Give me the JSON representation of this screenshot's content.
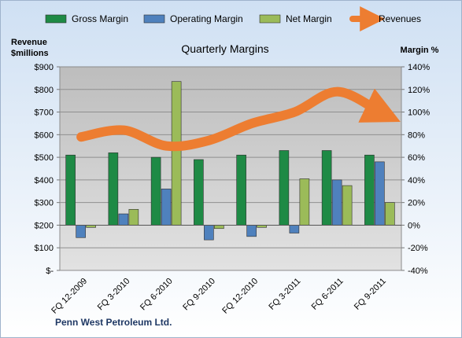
{
  "chart_data": {
    "type": "bar",
    "title": "Quarterly Margins",
    "company": "Penn West Petroleum Ltd.",
    "categories": [
      "FQ 12-2009",
      "FQ 3-2010",
      "FQ 6-2010",
      "FQ 9-2010",
      "FQ 12-2010",
      "FQ 3-2011",
      "FQ 6-2011",
      "FQ 9-2011"
    ],
    "left_axis": {
      "label_line1": "Revenue",
      "label_line2": "$millions",
      "ticks": [
        "$-",
        "$100",
        "$200",
        "$300",
        "$400",
        "$500",
        "$600",
        "$700",
        "$800",
        "$900"
      ],
      "ylim": [
        0,
        900
      ]
    },
    "right_axis": {
      "label": "Margin %",
      "ticks": [
        "-40%",
        "-20%",
        "0%",
        "20%",
        "40%",
        "60%",
        "80%",
        "100%",
        "120%",
        "140%"
      ],
      "ylim": [
        -40,
        140
      ]
    },
    "series": [
      {
        "name": "Gross Margin",
        "type": "bar",
        "axis": "right",
        "color": "#1e8a45",
        "values": [
          62,
          64,
          60,
          58,
          62,
          66,
          66,
          62
        ]
      },
      {
        "name": "Operating Margin",
        "type": "bar",
        "axis": "right",
        "color": "#4f81bd",
        "values": [
          -11,
          10,
          32,
          -13,
          -10,
          -7,
          40,
          56
        ]
      },
      {
        "name": "Net Margin",
        "type": "bar",
        "axis": "right",
        "color": "#9bbb59",
        "values": [
          -2,
          14,
          127,
          -3,
          -2,
          41,
          35,
          20
        ]
      },
      {
        "name": "Revenues",
        "type": "line",
        "axis": "left",
        "color": "#ed7d31",
        "values": [
          590,
          620,
          550,
          575,
          650,
          700,
          790,
          700
        ]
      }
    ],
    "legend_position": "top",
    "grid": true
  }
}
